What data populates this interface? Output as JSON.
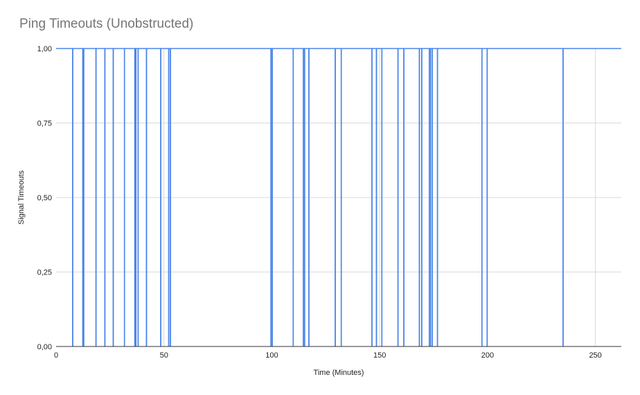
{
  "chart_data": {
    "type": "line",
    "title": "Ping Timeouts (Unobstructed)",
    "xlabel": "Time (Minutes)",
    "ylabel": "Signal Timeouts",
    "xlim": [
      0,
      262
    ],
    "ylim": [
      0,
      1
    ],
    "grid": true,
    "legend": "none",
    "x_ticks": [
      {
        "value": 0,
        "label": "0"
      },
      {
        "value": 50,
        "label": "50"
      },
      {
        "value": 100,
        "label": "100"
      },
      {
        "value": 150,
        "label": "150"
      },
      {
        "value": 200,
        "label": "200"
      },
      {
        "value": 250,
        "label": "250"
      }
    ],
    "y_ticks": [
      {
        "value": 0,
        "label": "0,00"
      },
      {
        "value": 0.25,
        "label": "0,25"
      },
      {
        "value": 0.5,
        "label": "0,50"
      },
      {
        "value": 0.75,
        "label": "0,75"
      },
      {
        "value": 1,
        "label": "1,00"
      }
    ],
    "series": [
      {
        "color": "#4a86e8",
        "baseline": 1,
        "drop_times": [
          7.7,
          12.4,
          12.8,
          18.5,
          22.6,
          26.5,
          31.7,
          36.5,
          37.0,
          38.0,
          41.9,
          48.5,
          52.2,
          53.0,
          99.6,
          100.2,
          109.9,
          114.6,
          115.2,
          117.2,
          129.4,
          132.2,
          146.4,
          148.5,
          151.0,
          158.5,
          161.2,
          168.4,
          169.5,
          173.0,
          173.6,
          174.4,
          176.8,
          197.4,
          199.8,
          235.0
        ]
      }
    ]
  }
}
